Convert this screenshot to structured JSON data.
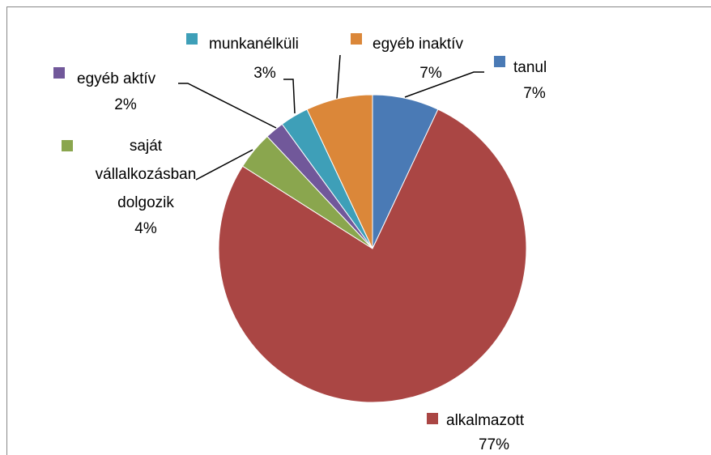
{
  "chart_data": {
    "type": "pie",
    "categories": [
      "tanul",
      "alkalmazott",
      "saját vállalkozásban dolgozik",
      "egyéb aktív",
      "munkanélküli",
      "egyéb inaktív"
    ],
    "values": [
      7,
      77,
      4,
      2,
      3,
      7
    ],
    "value_labels": [
      "7%",
      "77%",
      "4%",
      "2%",
      "3%",
      "7%"
    ],
    "colors": [
      "#4a7ab5",
      "#aa4644",
      "#8aa64e",
      "#71589a",
      "#3e9fb8",
      "#db8739"
    ]
  }
}
